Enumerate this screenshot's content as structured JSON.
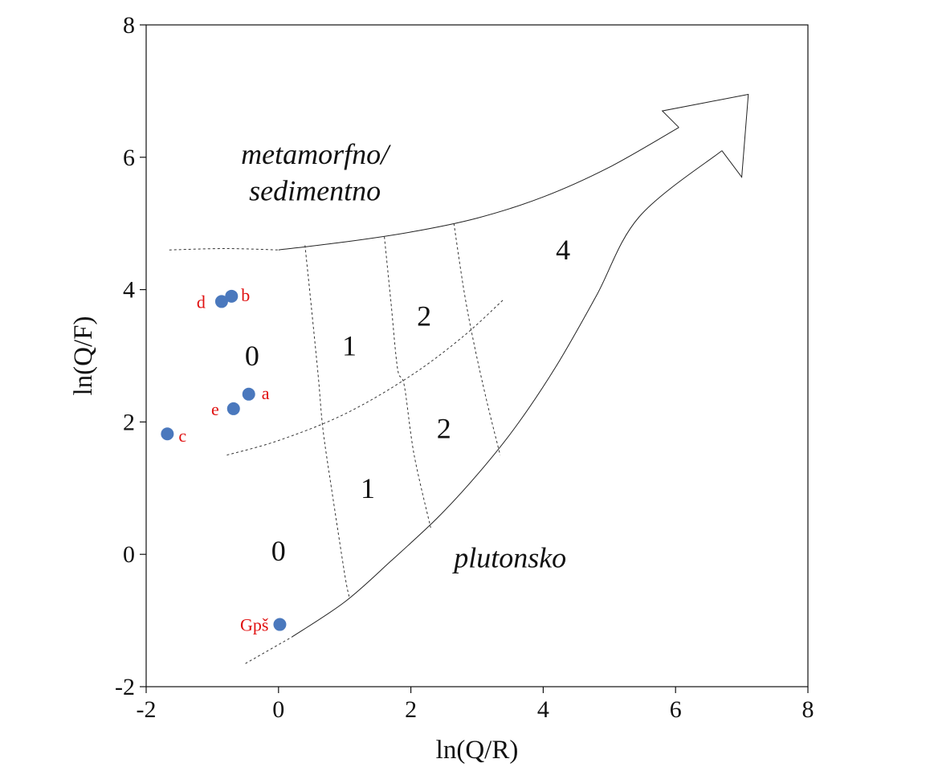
{
  "chart_data": {
    "type": "scatter",
    "xlabel": "ln(Q/R)",
    "ylabel": "ln(Q/F)",
    "xlim": [
      -2,
      8
    ],
    "ylim": [
      -2,
      8
    ],
    "x_ticks": [
      -2,
      0,
      2,
      4,
      6,
      8
    ],
    "y_ticks": [
      -2,
      0,
      2,
      4,
      6,
      8
    ],
    "x_tick_labels": [
      "-2",
      "0",
      "2",
      "4",
      "6",
      "8"
    ],
    "y_tick_labels": [
      "-2",
      "0",
      "2",
      "4",
      "6",
      "8"
    ],
    "grid": false,
    "point_color": "#4a78bd",
    "label_color": "#e01010",
    "points": [
      {
        "label": "d",
        "x": -0.86,
        "y": 3.82
      },
      {
        "label": "b",
        "x": -0.71,
        "y": 3.9
      },
      {
        "label": "a",
        "x": -0.45,
        "y": 2.42
      },
      {
        "label": "e",
        "x": -0.68,
        "y": 2.2
      },
      {
        "label": "c",
        "x": -1.68,
        "y": 1.82
      },
      {
        "label": "Gpš",
        "x": 0.02,
        "y": -1.06
      }
    ],
    "region_labels": [
      {
        "id": "metamorfno",
        "text": "metamorfno/",
        "x": 0.55,
        "y": 5.9
      },
      {
        "id": "sedimentno",
        "text": "sedimentno",
        "x": 0.55,
        "y": 5.35
      },
      {
        "id": "plutonsko",
        "text": "plutonsko",
        "x": 3.5,
        "y": -0.2
      }
    ],
    "zone_labels": [
      {
        "text": "0",
        "x": -0.4,
        "y": 3.0
      },
      {
        "text": "1",
        "x": 1.07,
        "y": 3.15
      },
      {
        "text": "2",
        "x": 2.2,
        "y": 3.6
      },
      {
        "text": "4",
        "x": 4.3,
        "y": 4.6
      },
      {
        "text": "2",
        "x": 2.5,
        "y": 1.9
      },
      {
        "text": "1",
        "x": 1.35,
        "y": 1.0
      },
      {
        "text": "0",
        "x": 0.0,
        "y": 0.05
      }
    ],
    "boundaries": {
      "upper_arrow_edge": [
        [
          0.0,
          4.6
        ],
        [
          1.0,
          4.72
        ],
        [
          2.0,
          4.87
        ],
        [
          3.0,
          5.08
        ],
        [
          4.0,
          5.4
        ],
        [
          5.0,
          5.85
        ],
        [
          6.05,
          6.45
        ]
      ],
      "upper_edge_dashed": [
        [
          -1.65,
          4.6
        ],
        [
          -0.8,
          4.62
        ],
        [
          0.0,
          4.6
        ]
      ],
      "lower_arrow_edge": [
        [
          0.2,
          -1.25
        ],
        [
          1.0,
          -0.72
        ],
        [
          1.7,
          -0.1
        ],
        [
          2.4,
          0.55
        ],
        [
          3.0,
          1.2
        ],
        [
          3.6,
          1.95
        ],
        [
          4.2,
          2.85
        ],
        [
          4.8,
          3.9
        ],
        [
          5.45,
          5.1
        ],
        [
          6.7,
          6.1
        ]
      ],
      "lower_edge_dashed": [
        [
          -0.5,
          -1.65
        ],
        [
          0.2,
          -1.25
        ]
      ],
      "arrow_head": [
        [
          6.05,
          6.45
        ],
        [
          5.8,
          6.7
        ],
        [
          7.1,
          6.95
        ],
        [
          7.0,
          5.7
        ],
        [
          6.7,
          6.1
        ]
      ],
      "mid_curve": [
        [
          -0.78,
          1.5
        ],
        [
          0.0,
          1.72
        ],
        [
          1.0,
          2.12
        ],
        [
          2.0,
          2.7
        ],
        [
          2.8,
          3.3
        ],
        [
          3.4,
          3.85
        ]
      ],
      "sep_1": [
        [
          0.4,
          4.67
        ],
        [
          0.5,
          3.7
        ],
        [
          0.6,
          2.7
        ],
        [
          0.67,
          1.9
        ],
        [
          0.8,
          1.0
        ],
        [
          1.0,
          -0.3
        ],
        [
          1.07,
          -0.65
        ]
      ],
      "sep_2": [
        [
          1.6,
          4.8
        ],
        [
          1.7,
          3.8
        ],
        [
          1.8,
          2.8
        ],
        [
          1.9,
          2.55
        ],
        [
          2.05,
          1.5
        ],
        [
          2.3,
          0.4
        ]
      ],
      "sep_3": [
        [
          2.65,
          5.0
        ],
        [
          2.8,
          4.0
        ],
        [
          2.95,
          3.2
        ],
        [
          3.15,
          2.3
        ],
        [
          3.35,
          1.5
        ]
      ]
    }
  }
}
